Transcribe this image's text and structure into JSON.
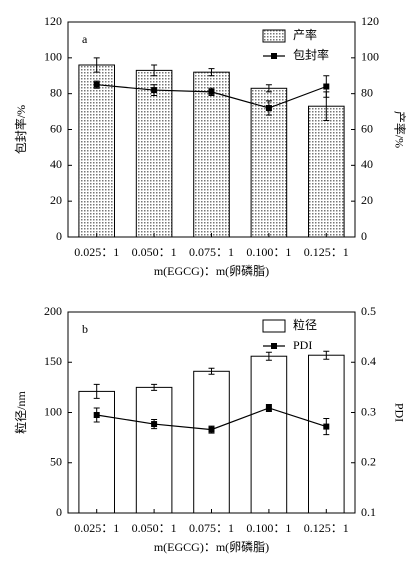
{
  "chart_data": [
    {
      "type": "bar",
      "panel_label": "a",
      "categories": [
        "0.025：1",
        "0.050：1",
        "0.075：1",
        "0.100：1",
        "0.125：1"
      ],
      "xlabel": "m(EGCG)：m(卵磷脂)",
      "ylabel": "包封率/%",
      "y2label": "产率/%",
      "ylim": [
        0,
        120
      ],
      "yticks": [
        0,
        20,
        40,
        60,
        80,
        100,
        120
      ],
      "y2lim": [
        0,
        120
      ],
      "y2ticks": [
        0,
        20,
        40,
        60,
        80,
        100,
        120
      ],
      "legend": "upper right",
      "series": [
        {
          "name": "产率",
          "type": "bar",
          "axis": "y2",
          "color": "#9a9a9a",
          "fill_pattern": "dots",
          "values": [
            96,
            93,
            92,
            83,
            73
          ],
          "errors": [
            4,
            3,
            2,
            2,
            8
          ]
        },
        {
          "name": "包封率",
          "type": "line",
          "axis": "y",
          "color": "#000000",
          "values": [
            85,
            82,
            81,
            72,
            84
          ],
          "errors": [
            2,
            3,
            2,
            4,
            6
          ]
        }
      ]
    },
    {
      "type": "bar",
      "panel_label": "b",
      "categories": [
        "0.025：1",
        "0.050：1",
        "0.075：1",
        "0.100：1",
        "0.125：1"
      ],
      "xlabel": "m(EGCG)：m(卵磷脂)",
      "ylabel": "粒径/nm",
      "y2label": "PDI",
      "ylim": [
        0,
        200
      ],
      "yticks": [
        0,
        50,
        100,
        150,
        200
      ],
      "y2lim": [
        0.1,
        0.5
      ],
      "y2ticks": [
        0.1,
        0.2,
        0.3,
        0.4,
        0.5
      ],
      "legend": "upper right",
      "series": [
        {
          "name": "粒径",
          "type": "bar",
          "axis": "y",
          "color": "#ffffff",
          "values": [
            121,
            125,
            141,
            156,
            157
          ],
          "errors": [
            7,
            3,
            3,
            4,
            4
          ]
        },
        {
          "name": "PDI",
          "type": "line",
          "axis": "y2",
          "color": "#000000",
          "values": [
            0.295,
            0.277,
            0.266,
            0.309,
            0.272
          ],
          "errors": [
            0.014,
            0.009,
            0.007,
            0.007,
            0.016
          ]
        }
      ]
    }
  ]
}
